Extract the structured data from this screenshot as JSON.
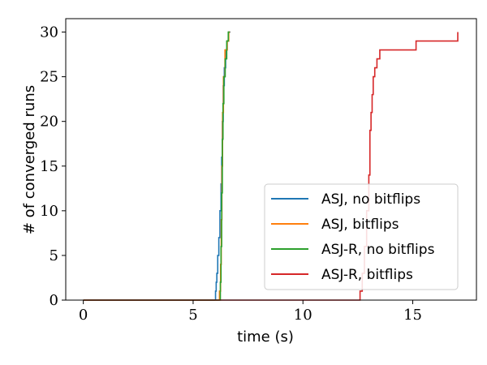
{
  "chart_data": {
    "type": "line",
    "xlabel": "time (s)",
    "ylabel": "# of converged runs",
    "xlim": [
      -0.8,
      17.9
    ],
    "ylim": [
      0,
      31.5
    ],
    "xticks": [
      0,
      5,
      10,
      15
    ],
    "yticks": [
      0,
      5,
      10,
      15,
      20,
      25,
      30
    ],
    "grid": false,
    "legend": "lower-right",
    "series": [
      {
        "name": "ASJ, no bitflips",
        "color": "#1f77b4",
        "step": true,
        "points": [
          [
            0,
            0
          ],
          [
            6.02,
            0
          ],
          [
            6.02,
            1
          ],
          [
            6.05,
            1
          ],
          [
            6.05,
            2
          ],
          [
            6.08,
            2
          ],
          [
            6.08,
            3
          ],
          [
            6.12,
            3
          ],
          [
            6.12,
            5
          ],
          [
            6.17,
            5
          ],
          [
            6.17,
            7
          ],
          [
            6.22,
            7
          ],
          [
            6.22,
            10
          ],
          [
            6.27,
            10
          ],
          [
            6.27,
            13
          ],
          [
            6.3,
            13
          ],
          [
            6.3,
            16
          ],
          [
            6.33,
            16
          ],
          [
            6.33,
            20
          ],
          [
            6.37,
            20
          ],
          [
            6.37,
            24
          ],
          [
            6.42,
            24
          ],
          [
            6.42,
            26
          ],
          [
            6.48,
            26
          ],
          [
            6.48,
            28
          ],
          [
            6.55,
            28
          ],
          [
            6.55,
            29
          ],
          [
            6.62,
            29
          ],
          [
            6.62,
            30
          ],
          [
            6.7,
            30
          ]
        ]
      },
      {
        "name": "ASJ, bitflips",
        "color": "#ff7f0e",
        "step": true,
        "points": [
          [
            0,
            0
          ],
          [
            6.2,
            0
          ],
          [
            6.2,
            1
          ],
          [
            6.25,
            1
          ],
          [
            6.25,
            4
          ],
          [
            6.28,
            4
          ],
          [
            6.28,
            9
          ],
          [
            6.31,
            9
          ],
          [
            6.31,
            15
          ],
          [
            6.34,
            15
          ],
          [
            6.34,
            21
          ],
          [
            6.38,
            21
          ],
          [
            6.38,
            25
          ],
          [
            6.45,
            25
          ],
          [
            6.45,
            28
          ],
          [
            6.55,
            28
          ],
          [
            6.55,
            29
          ],
          [
            6.62,
            29
          ],
          [
            6.62,
            30
          ],
          [
            6.68,
            30
          ]
        ]
      },
      {
        "name": "ASJ-R, no bitflips",
        "color": "#2ca02c",
        "step": true,
        "points": [
          [
            0,
            0
          ],
          [
            6.24,
            0
          ],
          [
            6.24,
            2
          ],
          [
            6.27,
            2
          ],
          [
            6.27,
            6
          ],
          [
            6.3,
            6
          ],
          [
            6.3,
            12
          ],
          [
            6.33,
            12
          ],
          [
            6.33,
            18
          ],
          [
            6.36,
            18
          ],
          [
            6.36,
            22
          ],
          [
            6.4,
            22
          ],
          [
            6.4,
            25
          ],
          [
            6.46,
            25
          ],
          [
            6.46,
            27
          ],
          [
            6.53,
            27
          ],
          [
            6.53,
            29
          ],
          [
            6.6,
            29
          ],
          [
            6.6,
            30
          ],
          [
            6.66,
            30
          ]
        ]
      },
      {
        "name": "ASJ-R, bitflips",
        "color": "#d62728",
        "step": true,
        "points": [
          [
            0,
            0
          ],
          [
            12.6,
            0
          ],
          [
            12.6,
            1
          ],
          [
            12.7,
            1
          ],
          [
            12.7,
            3
          ],
          [
            12.8,
            3
          ],
          [
            12.8,
            6
          ],
          [
            12.9,
            6
          ],
          [
            12.9,
            10
          ],
          [
            13.0,
            10
          ],
          [
            13.0,
            14
          ],
          [
            13.05,
            14
          ],
          [
            13.05,
            19
          ],
          [
            13.1,
            19
          ],
          [
            13.1,
            21
          ],
          [
            13.15,
            21
          ],
          [
            13.15,
            23
          ],
          [
            13.2,
            23
          ],
          [
            13.2,
            25
          ],
          [
            13.27,
            25
          ],
          [
            13.27,
            26
          ],
          [
            13.37,
            26
          ],
          [
            13.37,
            27
          ],
          [
            13.5,
            27
          ],
          [
            13.5,
            28
          ],
          [
            15.15,
            28
          ],
          [
            15.15,
            29
          ],
          [
            17.05,
            29
          ],
          [
            17.05,
            30
          ]
        ]
      }
    ]
  }
}
